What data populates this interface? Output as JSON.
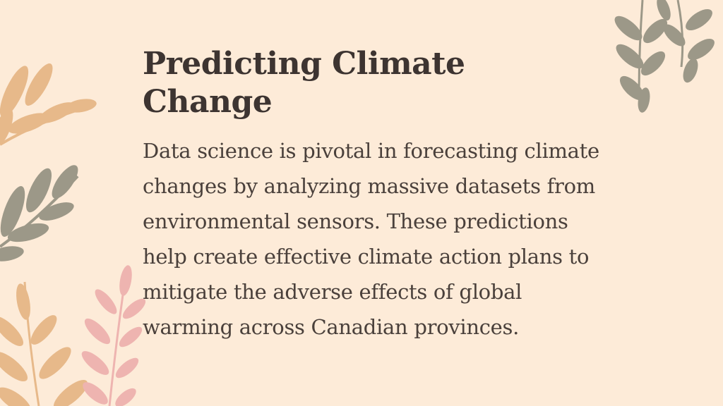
{
  "slide": {
    "title": "Predicting Climate Change",
    "body": "Data science is pivotal in forecasting climate changes by analyzing massive datasets from environmental sensors. These predictions help create effective climate action plans to mitigate the adverse effects of global warming across Canadian provinces."
  },
  "colors": {
    "background": "#fdebd8",
    "title_text": "#3d3431",
    "body_text": "#4a403b",
    "leaf_tan": "#e7b98a",
    "leaf_olive": "#9c9888",
    "leaf_pink": "#eeb4b0"
  },
  "decorations": [
    "leaf-branch-tan-top-left",
    "leaf-branch-olive-mid-left",
    "leaf-branch-tan-bottom-left",
    "leaf-branch-pink-bottom-left",
    "leaf-branch-olive-top-right"
  ]
}
